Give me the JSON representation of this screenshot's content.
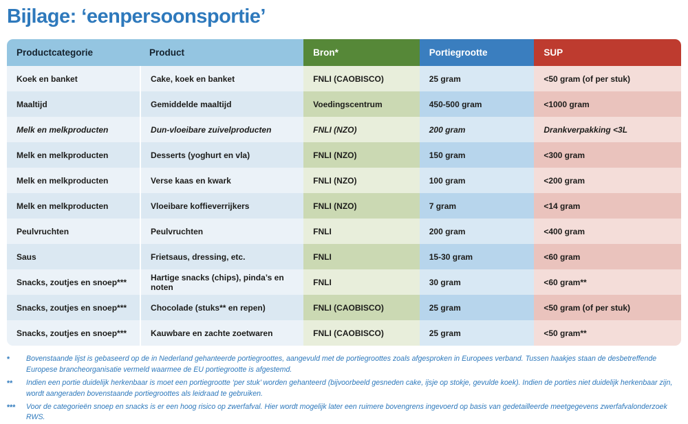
{
  "title": "Bijlage: ‘eenpersoonsportie’",
  "table": {
    "columns": [
      {
        "key": "category",
        "label": "Productcategorie"
      },
      {
        "key": "product",
        "label": "Product"
      },
      {
        "key": "bron",
        "label": "Bron*"
      },
      {
        "key": "portie",
        "label": "Portiegrootte"
      },
      {
        "key": "sup",
        "label": "SUP"
      }
    ],
    "rows": [
      {
        "category": "Koek en banket",
        "product": "Cake, koek en banket",
        "bron": "FNLI (CAOBISCO)",
        "portie": "25 gram",
        "sup": "<50 gram (of per stuk)",
        "italic": false
      },
      {
        "category": "Maaltijd",
        "product": "Gemiddelde maaltijd",
        "bron": "Voedingscentrum",
        "portie": "450-500 gram",
        "sup": "<1000 gram",
        "italic": false
      },
      {
        "category": "Melk en melkproducten",
        "product": "Dun-vloeibare zuivelproducten",
        "bron": "FNLI (NZO)",
        "portie": "200 gram",
        "sup": "Drankverpakking <3L",
        "italic": true
      },
      {
        "category": "Melk en melkproducten",
        "product": "Desserts (yoghurt en vla)",
        "bron": "FNLI (NZO)",
        "portie": "150 gram",
        "sup": "<300 gram",
        "italic": false
      },
      {
        "category": "Melk en melkproducten",
        "product": "Verse kaas en kwark",
        "bron": "FNLI (NZO)",
        "portie": "100 gram",
        "sup": "<200 gram",
        "italic": false
      },
      {
        "category": "Melk en melkproducten",
        "product": "Vloeibare koffieverrijkers",
        "bron": "FNLI (NZO)",
        "portie": "7 gram",
        "sup": "<14 gram",
        "italic": false
      },
      {
        "category": "Peulvruchten",
        "product": "Peulvruchten",
        "bron": "FNLI",
        "portie": "200 gram",
        "sup": "<400 gram",
        "italic": false
      },
      {
        "category": "Saus",
        "product": "Frietsaus, dressing, etc.",
        "bron": "FNLI",
        "portie": "15-30 gram",
        "sup": "<60 gram",
        "italic": false
      },
      {
        "category": "Snacks, zoutjes en snoep***",
        "product": "Hartige snacks (chips), pinda’s en noten",
        "bron": "FNLI",
        "portie": "30 gram",
        "sup": "<60 gram**",
        "italic": false
      },
      {
        "category": "Snacks, zoutjes en snoep***",
        "product": "Chocolade (stuks** en repen)",
        "bron": "FNLI (CAOBISCO)",
        "portie": "25 gram",
        "sup": "<50 gram (of per stuk)",
        "italic": false
      },
      {
        "category": "Snacks, zoutjes en snoep***",
        "product": "Kauwbare en zachte zoetwaren",
        "bron": "FNLI (CAOBISCO)",
        "portie": "25 gram",
        "sup": "<50 gram**",
        "italic": false
      }
    ]
  },
  "footnotes": [
    {
      "marker": "*",
      "text": "Bovenstaande lijst is gebaseerd op de in Nederland gehanteerde portiegroottes, aangevuld met de portiegroottes zoals afgesproken in Europees verband. Tussen haakjes staan de desbetreffende Europese brancheorganisatie vermeld waarmee de EU portiegrootte is afgestemd."
    },
    {
      "marker": "**",
      "text": "Indien een portie duidelijk herkenbaar is moet een portiegrootte ‘per stuk’ worden gehanteerd (bijvoorbeeld gesneden cake, ijsje op stokje, gevulde koek). Indien de porties niet duidelijk herkenbaar zijn, wordt aangeraden bovenstaande portiegroottes als leidraad te gebruiken."
    },
    {
      "marker": "***",
      "text": "Voor de categorieën snoep en snacks is er een hoog risico op zwerfafval. Hier wordt mogelijk later een ruimere bovengrens ingevoerd op basis van gedetailleerde meetgegevens zwerfafvalonderzoek RWS."
    }
  ],
  "colors": {
    "title_blue": "#2e79bc",
    "header_light_blue": "#94c5e1",
    "header_green": "#568838",
    "header_blue": "#3a7ebf",
    "header_red": "#be3b2f",
    "row_light": "#ebf2f8",
    "row_dark": "#dbe8f2",
    "bron_light": "#e8eedb",
    "bron_dark": "#cbd9b3",
    "portie_light": "#d8e8f4",
    "portie_dark": "#b7d5ec",
    "sup_light": "#f4ddd9",
    "sup_dark": "#eac3bd",
    "footnote_blue": "#2e79bc"
  }
}
